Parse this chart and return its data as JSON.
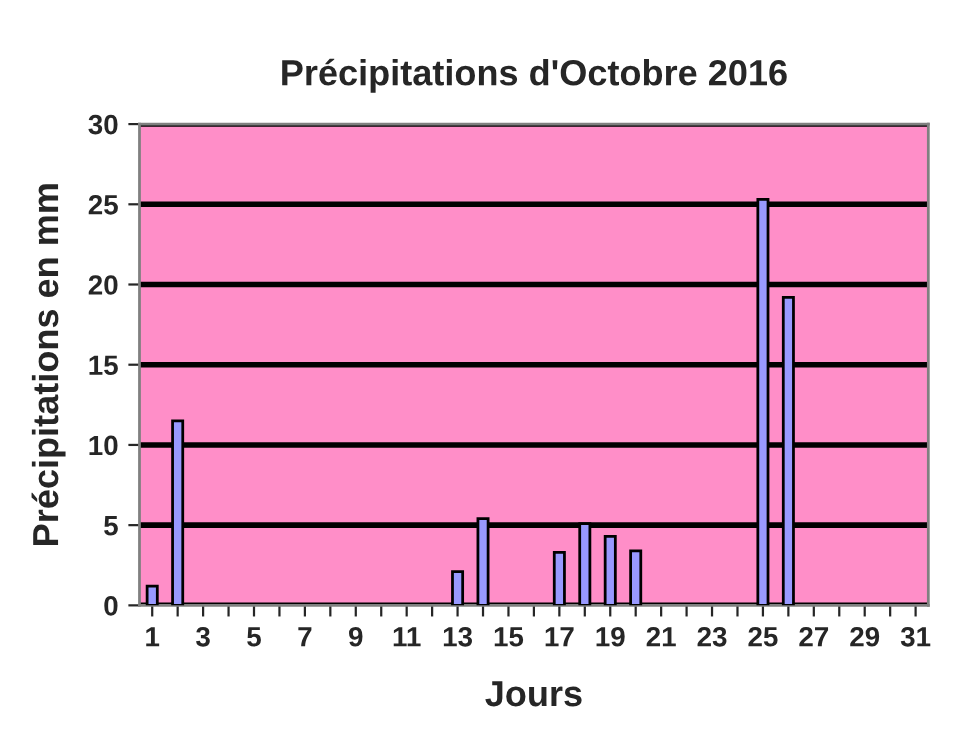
{
  "chart_data": {
    "type": "bar",
    "title": "Précipitations d'Octobre 2016",
    "xlabel": "Jours",
    "ylabel": "Précipitations en mm",
    "categories": [
      "1",
      null,
      "3",
      null,
      "5",
      null,
      "7",
      null,
      "9",
      null,
      "11",
      null,
      "13",
      null,
      "15",
      null,
      "17",
      null,
      "19",
      null,
      "21",
      null,
      "23",
      null,
      "25",
      null,
      "27",
      null,
      "29",
      null,
      "31"
    ],
    "values": [
      1.2,
      11.5,
      null,
      null,
      null,
      null,
      null,
      null,
      null,
      null,
      null,
      null,
      2.1,
      5.4,
      null,
      null,
      3.3,
      5.1,
      4.3,
      3.4,
      null,
      null,
      null,
      null,
      25.3,
      19.2,
      null,
      null,
      null,
      null,
      null
    ],
    "color": "#9999ff",
    "ylim": [
      0,
      30
    ],
    "yticks": [
      0,
      5,
      10,
      15,
      20,
      25,
      30
    ],
    "grid": "y",
    "legend": false
  }
}
